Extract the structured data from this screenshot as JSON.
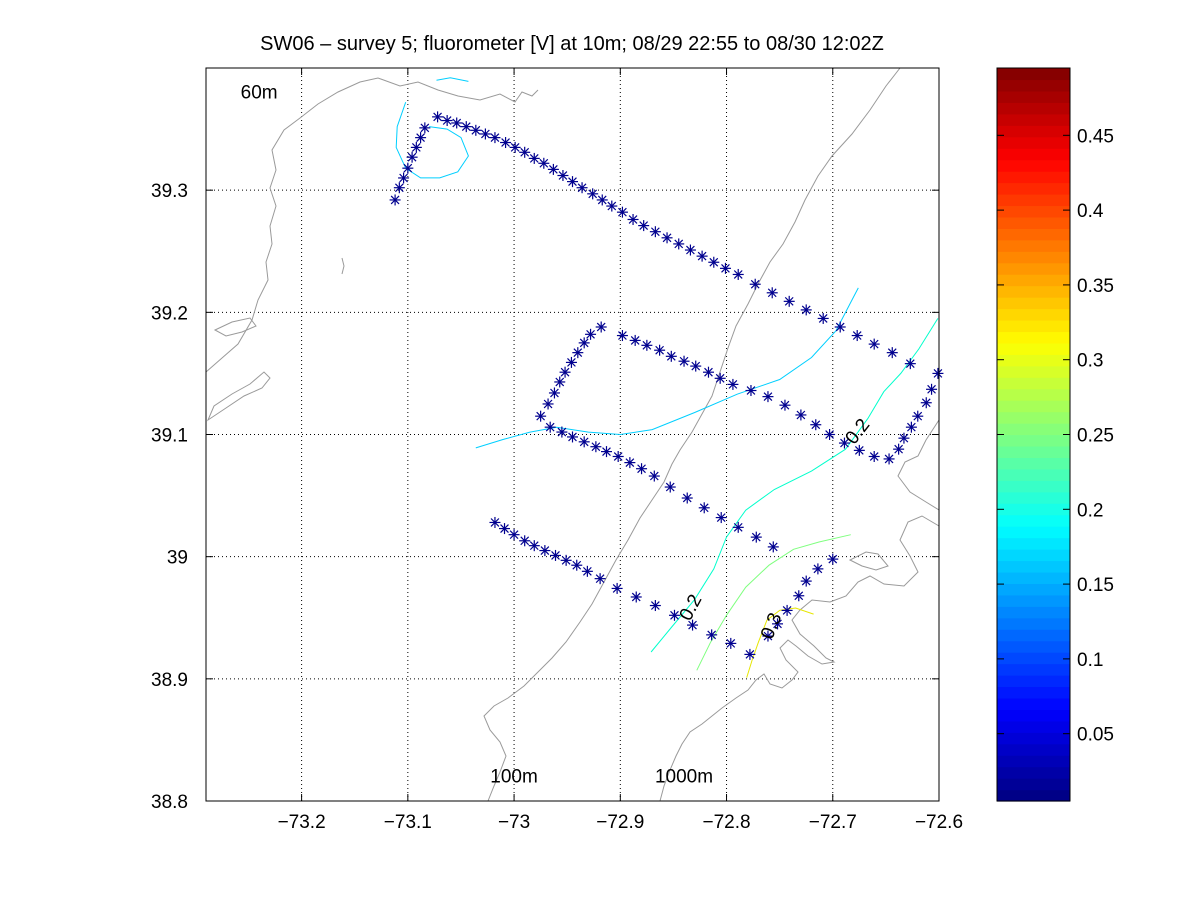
{
  "chart_data": {
    "type": "scatter",
    "title": "SW06 – survey 5; fluorometer [V] at 10m; 08/29 22:55 to 08/30 12:02Z",
    "xlabel": "",
    "ylabel": "",
    "xlim": [
      -73.29,
      -72.6
    ],
    "ylim": [
      38.8,
      39.4
    ],
    "grid": true,
    "xticks": [
      -73.2,
      -73.1,
      -73.0,
      -72.9,
      -72.8,
      -72.7,
      -72.6
    ],
    "xtick_labels": [
      "−73.2",
      "−73.1",
      "−73",
      "−72.9",
      "−72.8",
      "−72.7",
      "−72.6"
    ],
    "yticks": [
      38.8,
      38.9,
      39.0,
      39.1,
      39.2,
      39.3
    ],
    "ytick_labels": [
      "38.8",
      "38.9",
      "39",
      "39.1",
      "39.2",
      "39.3"
    ],
    "isobath_labels": [
      {
        "text": "60m",
        "x": -73.24,
        "y": 39.375
      },
      {
        "text": "100m",
        "x": -73.0,
        "y": 38.815
      },
      {
        "text": "1000m",
        "x": -72.84,
        "y": 38.815
      }
    ],
    "marker_color": "#00008f",
    "stations": [
      {
        "name": "line A",
        "points": [
          [
            -73.112,
            39.292
          ],
          [
            -73.108,
            39.302
          ],
          [
            -73.104,
            39.31
          ],
          [
            -73.1,
            39.318
          ],
          [
            -73.096,
            39.327
          ],
          [
            -73.092,
            39.335
          ],
          [
            -73.088,
            39.343
          ],
          [
            -73.084,
            39.351
          ],
          [
            -73.072,
            39.36
          ],
          [
            -73.063,
            39.357
          ],
          [
            -73.054,
            39.355
          ],
          [
            -73.045,
            39.352
          ],
          [
            -73.036,
            39.349
          ],
          [
            -73.027,
            39.346
          ],
          [
            -73.018,
            39.343
          ],
          [
            -73.008,
            39.339
          ],
          [
            -72.999,
            39.335
          ],
          [
            -72.99,
            39.331
          ],
          [
            -72.981,
            39.326
          ],
          [
            -72.972,
            39.322
          ],
          [
            -72.963,
            39.317
          ],
          [
            -72.954,
            39.312
          ],
          [
            -72.945,
            39.307
          ],
          [
            -72.936,
            39.302
          ],
          [
            -72.926,
            39.297
          ],
          [
            -72.917,
            39.292
          ],
          [
            -72.908,
            39.287
          ],
          [
            -72.898,
            39.282
          ],
          [
            -72.888,
            39.276
          ],
          [
            -72.878,
            39.271
          ],
          [
            -72.867,
            39.266
          ],
          [
            -72.856,
            39.261
          ],
          [
            -72.845,
            39.256
          ],
          [
            -72.834,
            39.251
          ],
          [
            -72.823,
            39.246
          ],
          [
            -72.812,
            39.241
          ],
          [
            -72.801,
            39.236
          ],
          [
            -72.789,
            39.231
          ],
          [
            -72.773,
            39.223
          ],
          [
            -72.757,
            39.216
          ],
          [
            -72.741,
            39.209
          ],
          [
            -72.725,
            39.202
          ],
          [
            -72.709,
            39.195
          ],
          [
            -72.693,
            39.188
          ],
          [
            -72.677,
            39.181
          ],
          [
            -72.661,
            39.174
          ],
          [
            -72.644,
            39.167
          ],
          [
            -72.627,
            39.158
          ]
        ]
      },
      {
        "name": "line B",
        "points": [
          [
            -72.975,
            39.115
          ],
          [
            -72.968,
            39.125
          ],
          [
            -72.962,
            39.134
          ],
          [
            -72.957,
            39.143
          ],
          [
            -72.952,
            39.151
          ],
          [
            -72.946,
            39.159
          ],
          [
            -72.94,
            39.167
          ],
          [
            -72.934,
            39.175
          ],
          [
            -72.928,
            39.182
          ],
          [
            -72.918,
            39.188
          ],
          [
            -72.898,
            39.181
          ],
          [
            -72.886,
            39.177
          ],
          [
            -72.875,
            39.173
          ],
          [
            -72.863,
            39.169
          ],
          [
            -72.852,
            39.164
          ],
          [
            -72.84,
            39.16
          ],
          [
            -72.829,
            39.156
          ],
          [
            -72.817,
            39.151
          ],
          [
            -72.806,
            39.146
          ],
          [
            -72.794,
            39.141
          ],
          [
            -72.777,
            39.136
          ],
          [
            -72.761,
            39.131
          ],
          [
            -72.745,
            39.124
          ],
          [
            -72.73,
            39.116
          ],
          [
            -72.716,
            39.108
          ],
          [
            -72.703,
            39.1
          ],
          [
            -72.689,
            39.093
          ],
          [
            -72.675,
            39.087
          ],
          [
            -72.661,
            39.082
          ],
          [
            -72.647,
            39.08
          ],
          [
            -72.638,
            39.088
          ],
          [
            -72.633,
            39.097
          ],
          [
            -72.626,
            39.106
          ],
          [
            -72.62,
            39.115
          ],
          [
            -72.612,
            39.126
          ],
          [
            -72.607,
            39.137
          ],
          [
            -72.601,
            39.15
          ]
        ]
      },
      {
        "name": "line C",
        "points": [
          [
            -72.966,
            39.106
          ],
          [
            -72.955,
            39.102
          ],
          [
            -72.945,
            39.098
          ],
          [
            -72.934,
            39.094
          ],
          [
            -72.923,
            39.09
          ],
          [
            -72.913,
            39.086
          ],
          [
            -72.902,
            39.082
          ],
          [
            -72.891,
            39.077
          ],
          [
            -72.88,
            39.072
          ],
          [
            -72.868,
            39.066
          ],
          [
            -72.853,
            39.057
          ],
          [
            -72.837,
            39.048
          ],
          [
            -72.821,
            39.04
          ],
          [
            -72.805,
            39.032
          ],
          [
            -72.789,
            39.024
          ],
          [
            -72.772,
            39.016
          ],
          [
            -72.756,
            39.008
          ]
        ]
      },
      {
        "name": "line D",
        "points": [
          [
            -73.018,
            39.028
          ],
          [
            -73.009,
            39.023
          ],
          [
            -73.0,
            39.018
          ],
          [
            -72.99,
            39.013
          ],
          [
            -72.981,
            39.009
          ],
          [
            -72.971,
            39.005
          ],
          [
            -72.961,
            39.001
          ],
          [
            -72.951,
            38.997
          ],
          [
            -72.941,
            38.993
          ],
          [
            -72.931,
            38.988
          ],
          [
            -72.919,
            38.982
          ],
          [
            -72.903,
            38.974
          ],
          [
            -72.885,
            38.967
          ],
          [
            -72.867,
            38.96
          ],
          [
            -72.849,
            38.952
          ],
          [
            -72.832,
            38.944
          ],
          [
            -72.814,
            38.936
          ],
          [
            -72.796,
            38.929
          ],
          [
            -72.778,
            38.92
          ],
          [
            -72.761,
            38.935
          ],
          [
            -72.752,
            38.945
          ],
          [
            -72.743,
            38.956
          ],
          [
            -72.732,
            38.968
          ],
          [
            -72.725,
            38.98
          ],
          [
            -72.714,
            38.99
          ],
          [
            -72.7,
            38.998
          ]
        ]
      }
    ],
    "contours": [
      {
        "level": 0.15,
        "color": "#00cfff",
        "points": [
          [
            -73.036,
            39.089
          ],
          [
            -73.01,
            39.096
          ],
          [
            -72.985,
            39.102
          ],
          [
            -72.96,
            39.106
          ],
          [
            -72.93,
            39.102
          ],
          [
            -72.9,
            39.1
          ],
          [
            -72.87,
            39.104
          ],
          [
            -72.83,
            39.118
          ],
          [
            -72.79,
            39.133
          ],
          [
            -72.75,
            39.145
          ],
          [
            -72.72,
            39.163
          ],
          [
            -72.697,
            39.185
          ],
          [
            -72.682,
            39.21
          ],
          [
            -72.676,
            39.22
          ]
        ]
      },
      {
        "level": 0.15,
        "color": "#00cfff",
        "points": [
          [
            -73.102,
            39.372
          ],
          [
            -73.11,
            39.352
          ],
          [
            -73.111,
            39.335
          ],
          [
            -73.102,
            39.318
          ],
          [
            -73.088,
            39.31
          ],
          [
            -73.07,
            39.31
          ],
          [
            -73.053,
            39.315
          ],
          [
            -73.043,
            39.328
          ],
          [
            -73.05,
            39.343
          ],
          [
            -73.063,
            39.35
          ],
          [
            -73.08,
            39.352
          ]
        ]
      },
      {
        "level": 0.15,
        "color": "#00cfff",
        "points": [
          [
            -73.073,
            39.39
          ],
          [
            -73.06,
            39.392
          ],
          [
            -73.043,
            39.389
          ]
        ]
      },
      {
        "level": 0.2,
        "color": "#00ffcc",
        "points": [
          [
            -72.871,
            38.922
          ],
          [
            -72.852,
            38.942
          ],
          [
            -72.83,
            38.965
          ],
          [
            -72.812,
            38.99
          ],
          [
            -72.8,
            39.016
          ],
          [
            -72.782,
            39.038
          ],
          [
            -72.755,
            39.055
          ],
          [
            -72.72,
            39.07
          ],
          [
            -72.688,
            39.088
          ],
          [
            -72.667,
            39.113
          ],
          [
            -72.652,
            39.135
          ],
          [
            -72.636,
            39.15
          ],
          [
            -72.619,
            39.17
          ],
          [
            -72.601,
            39.195
          ]
        ]
      },
      {
        "level": 0.25,
        "color": "#7fff7f",
        "points": [
          [
            -72.828,
            38.907
          ],
          [
            -72.815,
            38.93
          ],
          [
            -72.8,
            38.952
          ],
          [
            -72.782,
            38.975
          ],
          [
            -72.76,
            38.993
          ],
          [
            -72.737,
            39.006
          ],
          [
            -72.713,
            39.012
          ],
          [
            -72.683,
            39.018
          ]
        ]
      },
      {
        "level": 0.3,
        "color": "#e6e600",
        "points": [
          [
            -72.781,
            38.901
          ],
          [
            -72.776,
            38.915
          ],
          [
            -72.77,
            38.93
          ],
          [
            -72.762,
            38.948
          ],
          [
            -72.75,
            38.956
          ],
          [
            -72.735,
            38.958
          ],
          [
            -72.718,
            38.953
          ]
        ]
      }
    ],
    "contour_labels": [
      {
        "text": "0.2",
        "x": -72.676,
        "y": 39.102,
        "angle": -52
      },
      {
        "text": "0.2",
        "x": -72.833,
        "y": 38.958,
        "angle": -62
      },
      {
        "text": "0.3",
        "x": -72.757,
        "y": 38.943,
        "angle": -68
      }
    ],
    "colorbar": {
      "colormap": "jet",
      "range": [
        0.005,
        0.495
      ],
      "ticks": [
        0.05,
        0.1,
        0.15,
        0.2,
        0.25,
        0.3,
        0.35,
        0.4,
        0.45
      ],
      "tick_labels": [
        "0.05",
        "0.1",
        "0.15",
        "0.2",
        "0.25",
        "0.3",
        "0.35",
        "0.4",
        "0.45"
      ]
    }
  }
}
